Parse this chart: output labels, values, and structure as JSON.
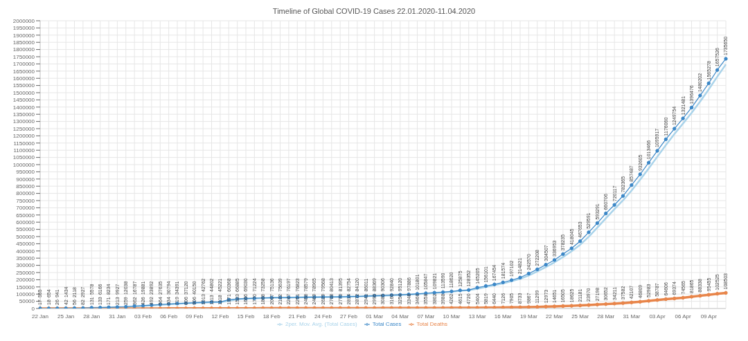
{
  "chart_data": {
    "type": "line",
    "title": "Timeline of Global COVID-19 Cases 22.01.2020-11.04.2020",
    "categories": [
      "22 Jan",
      null,
      null,
      "25 Jan",
      null,
      null,
      "28 Jan",
      null,
      null,
      "31 Jan",
      null,
      null,
      "03 Feb",
      null,
      null,
      "06 Feb",
      null,
      null,
      "09 Feb",
      null,
      null,
      "12 Feb",
      null,
      null,
      "15 Feb",
      null,
      null,
      "18 Feb",
      null,
      null,
      "21 Feb",
      null,
      null,
      "24 Feb",
      null,
      null,
      "27 Feb",
      null,
      null,
      "01 Mar",
      null,
      null,
      "04 Mar",
      null,
      null,
      "07 Mar",
      null,
      null,
      "10 Mar",
      null,
      null,
      "13 Mar",
      null,
      null,
      "16 Mar",
      null,
      null,
      "19 Mar",
      null,
      null,
      "22 Mar",
      null,
      null,
      "25 Mar",
      null,
      null,
      "28 Mar",
      null,
      null,
      "31 Mar",
      null,
      null,
      "03 Apr",
      null,
      null,
      "06 Apr",
      null,
      null,
      "09 Apr",
      null,
      null
    ],
    "series": [
      {
        "name": "Total Cases",
        "color": "#3b87c7",
        "data_labels": true,
        "values": [
          555,
          654,
          941,
          1434,
          2118,
          2927,
          5578,
          6166,
          8234,
          9927,
          12038,
          16787,
          19881,
          23892,
          27635,
          30794,
          34391,
          37120,
          40150,
          42762,
          44802,
          45221,
          60368,
          66885,
          69030,
          71224,
          73258,
          75136,
          75639,
          76197,
          76823,
          78579,
          78965,
          79568,
          80413,
          81395,
          82754,
          84120,
          86011,
          88369,
          90306,
          92840,
          95120,
          97886,
          101801,
          105847,
          109821,
          113590,
          118620,
          125875,
          128352,
          145205,
          156101,
          167454,
          181574,
          197102,
          214821,
          242570,
          272208,
          304507,
          336953,
          378235,
          418045,
          467653,
          529591,
          593291,
          660706,
          720117,
          782365,
          857487,
          932605,
          1013466,
          1095917,
          1176060,
          1249754,
          1321481,
          1396476,
          1480202,
          1565278,
          1657526,
          1735650
        ]
      },
      {
        "name": "Total Deaths",
        "color": "#e8854a",
        "data_labels": true,
        "values": [
          17,
          18,
          26,
          42,
          56,
          82,
          131,
          133,
          171,
          213,
          259,
          362,
          426,
          492,
          564,
          634,
          719,
          806,
          906,
          1013,
          1113,
          1118,
          1371,
          1523,
          1666,
          1770,
          1868,
          2007,
          2122,
          2247,
          2251,
          2458,
          2469,
          2629,
          2708,
          2770,
          2814,
          2872,
          2941,
          2996,
          3085,
          3160,
          3254,
          3348,
          3460,
          3558,
          3802,
          3988,
          4262,
          4615,
          4720,
          5404,
          5819,
          6440,
          7126,
          7905,
          8733,
          9867,
          11299,
          12973,
          14651,
          16505,
          18625,
          21181,
          23970,
          27198,
          30652,
          34211,
          37582,
          42107,
          46809,
          52983,
          58787,
          64606,
          69374,
          74565,
          81865,
          88338,
          95455,
          102525,
          108503
        ]
      },
      {
        "name": "2per. Mov. Avg. (Total Cases)",
        "color": "#a9d3ea",
        "marker": "none",
        "values": [
          null,
          605,
          798,
          1188,
          1776,
          2523,
          4253,
          5872,
          7200,
          9081,
          10983,
          14413,
          18334,
          21887,
          25764,
          29215,
          32593,
          35756,
          38635,
          41456,
          43782,
          45012,
          52795,
          63627,
          67958,
          70127,
          72241,
          74197,
          75388,
          75918,
          76510,
          77701,
          78772,
          79267,
          79991,
          80904,
          82075,
          83437,
          85066,
          87190,
          89338,
          91573,
          93980,
          96503,
          99844,
          103824,
          107834,
          111706,
          116105,
          122248,
          127114,
          136779,
          150653,
          161778,
          174514,
          189338,
          205962,
          228696,
          257389,
          288358,
          320730,
          357594,
          398140,
          442849,
          498622,
          561441,
          626999,
          690412,
          751241,
          819926,
          895046,
          973036,
          1054692,
          1135989,
          1212907,
          1285618,
          1358979,
          1438339,
          1522740,
          1611402,
          1696588
        ]
      }
    ],
    "ylim": [
      0,
      2000000
    ],
    "yticks": [
      0,
      50000,
      100000,
      150000,
      200000,
      250000,
      300000,
      350000,
      400000,
      450000,
      500000,
      550000,
      600000,
      650000,
      700000,
      750000,
      800000,
      850000,
      900000,
      950000,
      1000000,
      1050000,
      1100000,
      1150000,
      1200000,
      1250000,
      1300000,
      1350000,
      1400000,
      1450000,
      1500000,
      1550000,
      1600000,
      1650000,
      1700000,
      1750000,
      1800000,
      1850000,
      1900000,
      1950000,
      2000000
    ],
    "grid": true,
    "legend": "bottom",
    "marker": "circle",
    "line_style": "solid"
  }
}
